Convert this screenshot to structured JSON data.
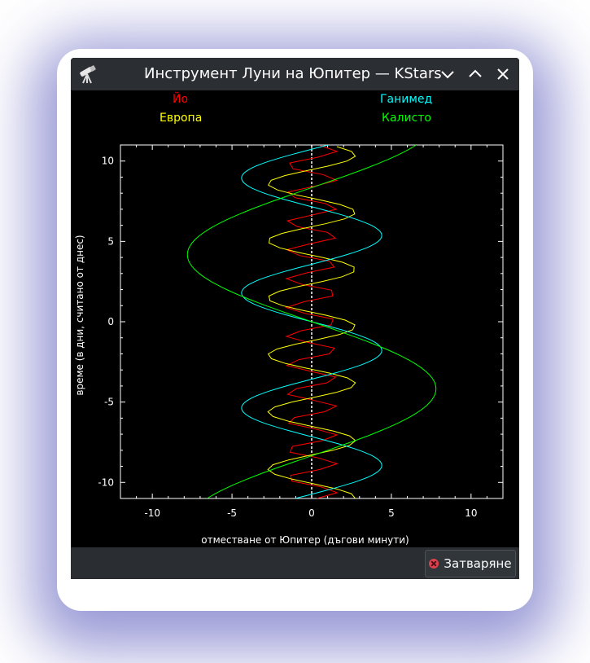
{
  "window": {
    "title": "Инструмент Луни на Юпитер — KStars",
    "close_button_label": "Затваряне"
  },
  "colors": {
    "io": "#ff0000",
    "europa": "#ffff00",
    "ganymede": "#00ffff",
    "callisto": "#00ff00",
    "jupiter_line": "#ffffff",
    "frame": "#ffffff",
    "background": "#000000"
  },
  "icons": {
    "app": "telescope-icon",
    "minimize": "chevron-down-icon",
    "maximize": "chevron-up-icon",
    "close": "close-icon",
    "button_close": "close-circle-icon"
  },
  "chart_data": {
    "type": "line",
    "xlabel": "отместване от Юпитер (дъгови минути)",
    "ylabel": "време (в дни, считано от днес)",
    "xlim": [
      -12,
      12
    ],
    "ylim": [
      -11,
      11
    ],
    "xticks": [
      "-10",
      "-5",
      "0",
      "5",
      "10"
    ],
    "yticks": [
      "10",
      "5",
      "0",
      "-5",
      "-10"
    ],
    "legend_placement": "top",
    "jupiter_offset": 0,
    "series": [
      {
        "name": "Йо",
        "key": "io",
        "amplitude": 1.6,
        "period_days": 1.769,
        "phase_deg": 90
      },
      {
        "name": "Европа",
        "key": "europa",
        "amplitude": 2.75,
        "period_days": 3.551,
        "phase_deg": 120
      },
      {
        "name": "Ганимед",
        "key": "ganymede",
        "amplitude": 4.4,
        "period_days": 7.155,
        "phase_deg": 180
      },
      {
        "name": "Калисто",
        "key": "callisto",
        "amplitude": 7.8,
        "period_days": 16.689,
        "phase_deg": 180
      }
    ]
  }
}
